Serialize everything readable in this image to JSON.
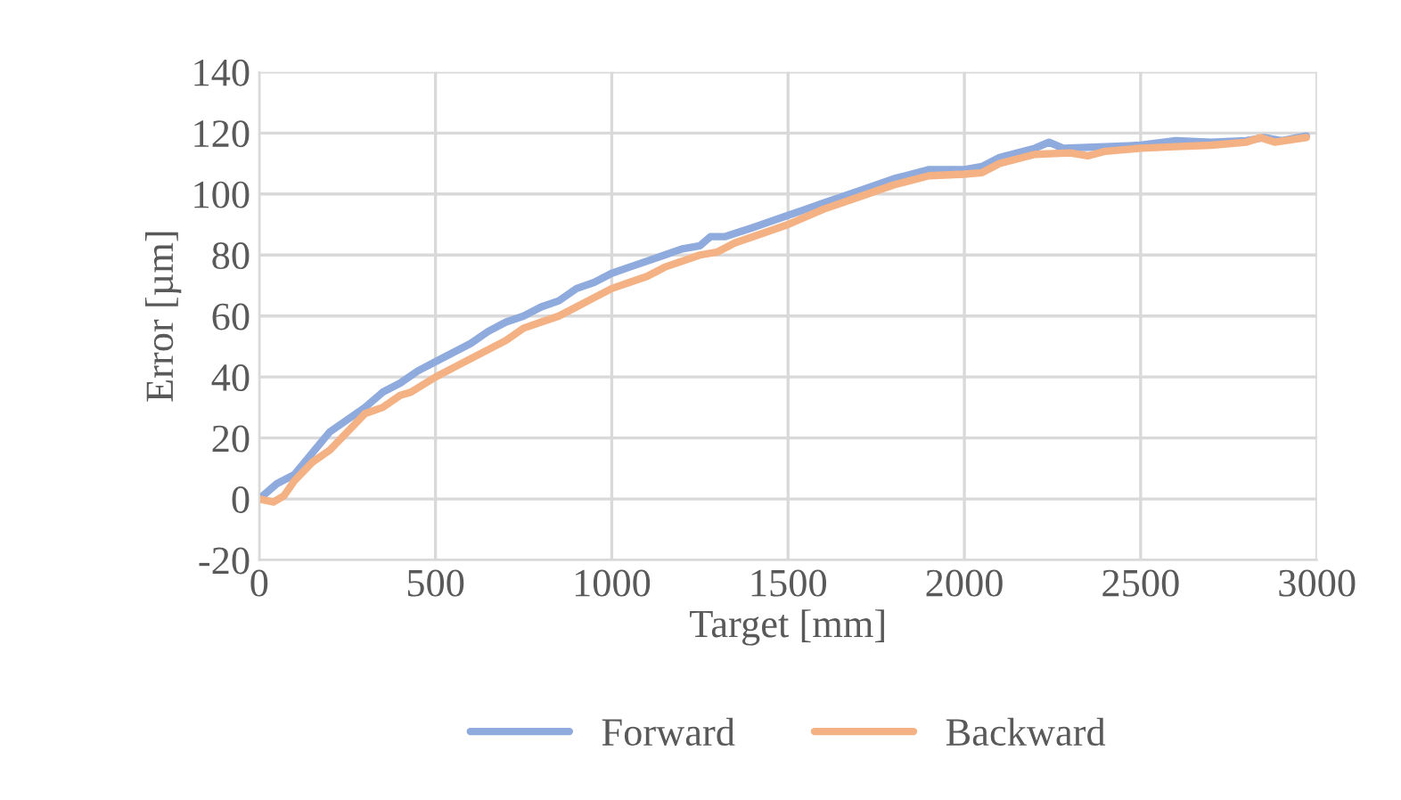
{
  "chart_data": {
    "type": "line",
    "xlabel": "Target [mm]",
    "ylabel": "Error [µm]",
    "xlim": [
      0,
      3000
    ],
    "xticks": [
      0,
      500,
      1000,
      1500,
      2000,
      2500,
      3000
    ],
    "ylim": [
      -20,
      140
    ],
    "yticks": [
      -20,
      0,
      20,
      40,
      60,
      80,
      100,
      120,
      140
    ],
    "grid": true,
    "legend": "bottom",
    "marker": "none",
    "line_style": "solid",
    "series": [
      {
        "name": "Forward",
        "color": "#8faadc",
        "x": [
          0,
          50,
          100,
          150,
          200,
          250,
          300,
          350,
          400,
          450,
          500,
          550,
          600,
          650,
          700,
          750,
          800,
          850,
          900,
          950,
          1000,
          1050,
          1100,
          1150,
          1200,
          1250,
          1280,
          1320,
          1400,
          1500,
          1550,
          1600,
          1700,
          1800,
          1900,
          2000,
          2050,
          2100,
          2200,
          2240,
          2280,
          2400,
          2500,
          2600,
          2700,
          2800,
          2850,
          2900,
          2970
        ],
        "values": [
          0,
          5,
          8,
          15,
          22,
          26,
          30,
          35,
          38,
          42,
          45,
          48,
          51,
          55,
          58,
          60,
          63,
          65,
          69,
          71,
          74,
          76,
          78,
          80,
          82,
          83,
          86,
          86,
          89,
          93,
          95,
          97,
          101,
          105,
          108,
          108,
          109,
          112,
          115,
          117,
          115,
          115.5,
          116,
          117.5,
          117,
          117.5,
          118.5,
          117.5,
          119
        ]
      },
      {
        "name": "Backward",
        "color": "#f4b183",
        "x": [
          0,
          40,
          70,
          100,
          150,
          200,
          250,
          300,
          350,
          400,
          430,
          500,
          550,
          600,
          650,
          700,
          750,
          800,
          850,
          900,
          950,
          1000,
          1050,
          1100,
          1150,
          1200,
          1250,
          1300,
          1350,
          1400,
          1500,
          1600,
          1700,
          1800,
          1900,
          2000,
          2050,
          2100,
          2200,
          2300,
          2350,
          2400,
          2500,
          2600,
          2700,
          2800,
          2840,
          2880,
          2970
        ],
        "values": [
          0,
          -1,
          1,
          6,
          12,
          16,
          22,
          28,
          30,
          34,
          35,
          40,
          43,
          46,
          49,
          52,
          56,
          58,
          60,
          63,
          66,
          69,
          71,
          73,
          76,
          78,
          80,
          81,
          84,
          86,
          90,
          95,
          99,
          103,
          106,
          106.5,
          107,
          110,
          113,
          113.5,
          112.5,
          114,
          115,
          115.5,
          116,
          117,
          118.5,
          117,
          118.5
        ]
      }
    ]
  }
}
